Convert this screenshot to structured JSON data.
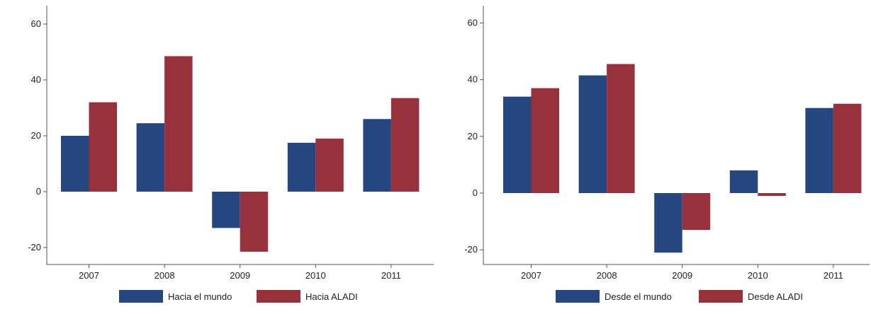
{
  "colors": {
    "world": "#26467F",
    "aladi": "#97323D",
    "axis": "#555555"
  },
  "chart_data": [
    {
      "type": "bar",
      "categories": [
        "2007",
        "2008",
        "2009",
        "2010",
        "2011"
      ],
      "series": [
        {
          "name": "Hacia el mundo",
          "values": [
            20,
            24.5,
            -13,
            17.5,
            26
          ]
        },
        {
          "name": "Hacia ALADI",
          "values": [
            32,
            48.5,
            -21.5,
            19,
            33.5
          ]
        }
      ],
      "ylim": [
        -23,
        63
      ],
      "yticks": [
        "60",
        "40",
        "20",
        "0",
        "-20"
      ],
      "grid": false,
      "legend_position": "bottom"
    },
    {
      "type": "bar",
      "categories": [
        "2007",
        "2008",
        "2009",
        "2010",
        "2011"
      ],
      "series": [
        {
          "name": "Desde el mundo",
          "values": [
            34,
            41.5,
            -21,
            8,
            30
          ]
        },
        {
          "name": "Desde ALADI",
          "values": [
            37,
            45.5,
            -13,
            -1,
            31.5
          ]
        }
      ],
      "ylim": [
        -23,
        63
      ],
      "yticks": [
        "60",
        "40",
        "20",
        "0",
        "-20"
      ],
      "grid": false,
      "legend_position": "bottom"
    }
  ]
}
